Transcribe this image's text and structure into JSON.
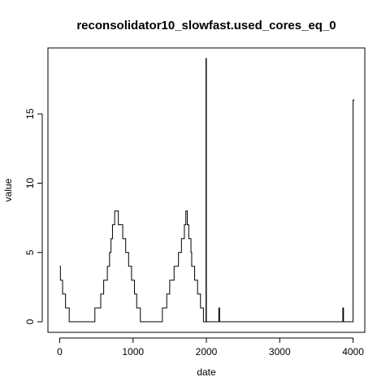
{
  "chart_data": {
    "type": "line",
    "title": "reconsolidator10_slowfast.used_cores_eq_0",
    "xlabel": "date",
    "ylabel": "value",
    "xlim": [
      -160,
      4160
    ],
    "ylim": [
      -0.76,
      19.76
    ],
    "x_ticks": [
      0,
      1000,
      2000,
      3000,
      4000
    ],
    "y_ticks": [
      0,
      5,
      10,
      15
    ],
    "grid": false,
    "line_color": "#000000",
    "series": [
      {
        "step": true,
        "x": [
          0,
          10,
          40,
          80,
          130,
          170,
          480,
          560,
          600,
          650,
          680,
          700,
          720,
          750,
          800,
          860,
          900,
          940,
          980,
          1020,
          1050,
          1100,
          1150,
          1400,
          1460,
          1500,
          1560,
          1620,
          1660,
          1700,
          1720,
          1740,
          1760,
          1790,
          1800,
          1840,
          1880,
          1920,
          1960,
          1980,
          1995,
          2000,
          2005,
          2170,
          2180,
          2190,
          3860,
          3870,
          3880,
          4000,
          4010,
          4020
        ],
        "y": [
          4,
          3,
          2,
          1,
          0,
          0,
          1,
          2,
          3,
          4,
          5,
          6,
          7,
          8,
          7,
          6,
          5,
          4,
          3,
          2,
          1,
          0,
          0,
          1,
          2,
          3,
          4,
          5,
          6,
          7,
          8,
          7,
          6,
          5,
          4,
          3,
          2,
          1,
          0,
          0,
          19,
          0,
          0,
          1,
          0,
          0,
          1,
          0,
          0,
          16,
          16,
          16
        ]
      }
    ]
  }
}
